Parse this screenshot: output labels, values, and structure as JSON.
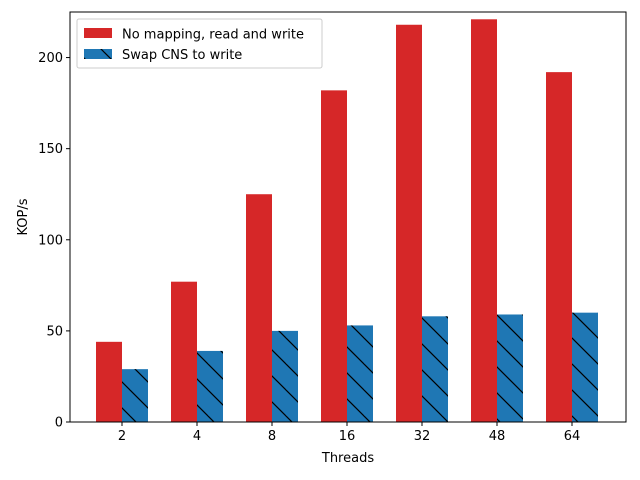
{
  "chart_data": {
    "type": "bar",
    "xlabel": "Threads",
    "ylabel": "KOP/s",
    "categories": [
      "2",
      "4",
      "8",
      "16",
      "32",
      "48",
      "64"
    ],
    "ylim": [
      0,
      225
    ],
    "yticks": [
      0,
      50,
      100,
      150,
      200
    ],
    "grid": false,
    "legend_position": "top-left",
    "series": [
      {
        "name": "No mapping, read and write",
        "values": [
          44,
          77,
          125,
          182,
          218,
          221,
          192
        ],
        "color": "#d62728",
        "hatch": "none"
      },
      {
        "name": "Swap CNS to write",
        "values": [
          29,
          39,
          50,
          53,
          58,
          59,
          60
        ],
        "color": "#1f77b4",
        "hatch": "backslash"
      }
    ]
  }
}
